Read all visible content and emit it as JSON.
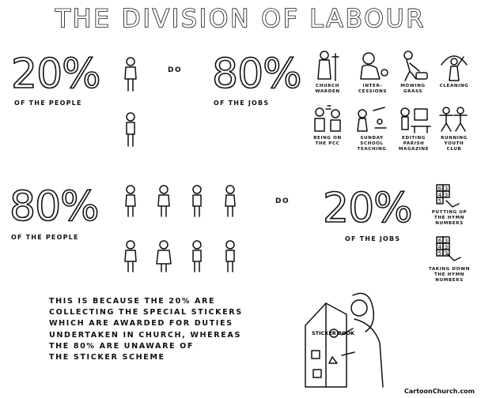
{
  "title": "THE DIVISION OF LABOUR",
  "row1": {
    "people_pct": "20%",
    "people_caption": "OF THE PEOPLE",
    "do_label": "DO",
    "jobs_pct": "80%",
    "jobs_caption": "OF THE JOBS",
    "jobs": [
      {
        "label": "CHURCH\nWARDEN",
        "icon": "warden-figure-icon"
      },
      {
        "label": "INTER-\nCESSIONS",
        "icon": "praying-figure-icon"
      },
      {
        "label": "MOWING\nGRASS",
        "icon": "mower-icon"
      },
      {
        "label": "CLEANING",
        "icon": "cleaning-figure-icon"
      },
      {
        "label": "BEING ON\nTHE PCC",
        "icon": "meeting-figures-icon"
      },
      {
        "label": "SUNDAY\nSCHOOL\nTEACHING",
        "icon": "teacher-icon"
      },
      {
        "label": "EDITING\nPARISH\nMAGAZINE",
        "icon": "computer-desk-icon"
      },
      {
        "label": "RUNNING\nYOUTH\nCLUB",
        "icon": "jumping-figures-icon"
      }
    ]
  },
  "row2": {
    "people_pct": "80%",
    "people_caption": "OF THE PEOPLE",
    "do_label": "DO",
    "jobs_pct": "20%",
    "jobs_caption": "OF THE JOBS",
    "hymn_numbers": [
      "6",
      "3",
      "4",
      "3",
      "5",
      "3"
    ],
    "jobs": [
      {
        "label": "PUTTING UP\nTHE HYMN\nNUMBERS",
        "icon": "hymn-board-put-up-icon"
      },
      {
        "label": "TAKING DOWN\nTHE HYMN\nNUMBERS",
        "icon": "hymn-board-take-down-icon"
      }
    ]
  },
  "explanation": "THIS IS BECAUSE THE 20% ARE\nCOLLECTING THE SPECIAL STICKERS\nWHICH ARE AWARDED FOR DUTIES\nUNDERTAKEN IN CHURCH, WHEREAS\nTHE 80% ARE UNAWARE OF\nTHE STICKER SCHEME",
  "sticker_book_text": "STICKER\nBOOK",
  "credit": "CartoonChurch.com"
}
